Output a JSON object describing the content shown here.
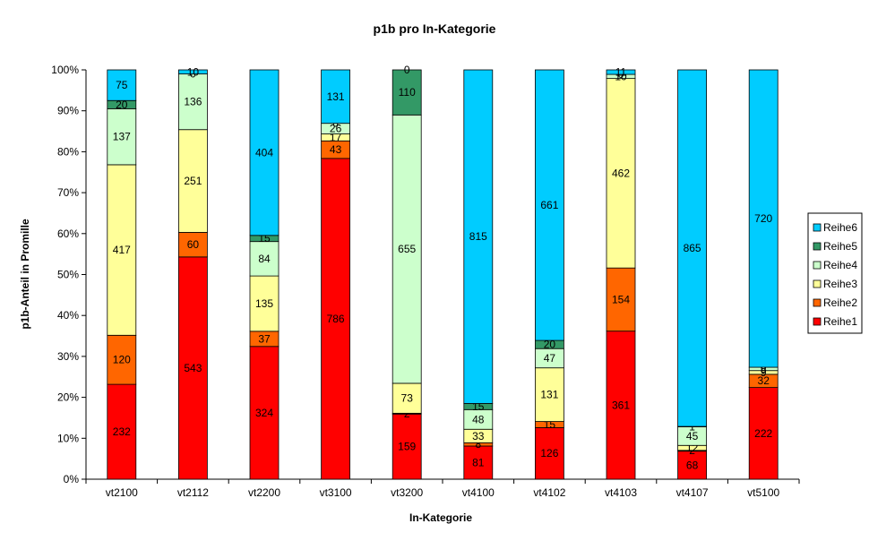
{
  "chart_data": {
    "type": "bar",
    "stacked": "percent",
    "title": "p1b pro In-Kategorie",
    "xlabel": "In-Kategorie",
    "ylabel": "p1b-Anteil in Promille",
    "ylim": [
      0,
      100
    ],
    "yticks": [
      "0%",
      "10%",
      "20%",
      "30%",
      "40%",
      "50%",
      "60%",
      "70%",
      "80%",
      "90%",
      "100%"
    ],
    "categories": [
      "vt2100",
      "vt2112",
      "vt2200",
      "vt3100",
      "vt3200",
      "vt4100",
      "vt4102",
      "vt4103",
      "vt4107",
      "vt5100"
    ],
    "grid": false,
    "legend_position": "right",
    "series": [
      {
        "name": "Reihe1",
        "color": "#ff0000",
        "values": [
          232,
          543,
          324,
          786,
          159,
          81,
          126,
          361,
          68,
          222
        ]
      },
      {
        "name": "Reihe2",
        "color": "#ff6600",
        "values": [
          120,
          60,
          37,
          43,
          2,
          8,
          15,
          154,
          2,
          32
        ]
      },
      {
        "name": "Reihe3",
        "color": "#ffff99",
        "values": [
          417,
          251,
          135,
          17,
          73,
          33,
          131,
          462,
          12,
          9
        ]
      },
      {
        "name": "Reihe4",
        "color": "#ccffcc",
        "values": [
          137,
          136,
          84,
          26,
          655,
          48,
          47,
          10,
          45,
          8
        ]
      },
      {
        "name": "Reihe5",
        "color": "#339966",
        "values": [
          20,
          0,
          15,
          0,
          110,
          15,
          20,
          0,
          1,
          0
        ]
      },
      {
        "name": "Reihe6",
        "color": "#00ccff",
        "values": [
          75,
          10,
          404,
          131,
          0,
          815,
          661,
          11,
          865,
          720
        ]
      }
    ],
    "segment_labels": [
      [
        "232",
        "120",
        "417",
        "137",
        "20",
        "75"
      ],
      [
        "543",
        "60",
        "251",
        "136",
        "0",
        "10"
      ],
      [
        "324",
        "37",
        "135",
        "84",
        "15",
        "404"
      ],
      [
        "786",
        "43",
        "17",
        "26",
        "0",
        "131"
      ],
      [
        "159",
        "2",
        "73",
        "655",
        "110",
        "0"
      ],
      [
        "81",
        "8",
        "33",
        "48",
        "15",
        "815"
      ],
      [
        "126",
        "15",
        "131",
        "47",
        "20",
        "661"
      ],
      [
        "361",
        "154",
        "462",
        "10",
        "0",
        "11"
      ],
      [
        "68",
        "2",
        "12",
        "45",
        "1",
        "865"
      ],
      [
        "222",
        "32",
        "9",
        "8",
        "0",
        "720"
      ]
    ]
  }
}
